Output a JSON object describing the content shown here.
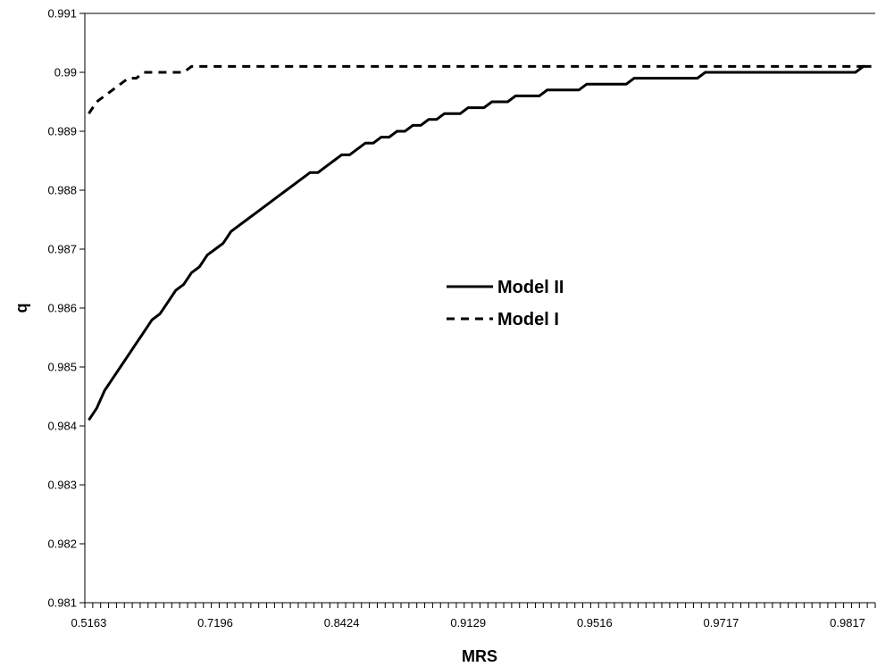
{
  "chart_data": {
    "type": "line",
    "title": "",
    "xlabel": "MRS",
    "ylabel": "q",
    "x_tick_labels": [
      "0.5163",
      "0.7196",
      "0.8424",
      "0.9129",
      "0.9516",
      "0.9717",
      "0.9817"
    ],
    "y_ticks": [
      0.981,
      0.982,
      0.983,
      0.984,
      0.985,
      0.986,
      0.987,
      0.988,
      0.989,
      0.99,
      0.991
    ],
    "y_tick_labels": [
      "0.981",
      "0.982",
      "0.983",
      "0.984",
      "0.985",
      "0.986",
      "0.987",
      "0.988",
      "0.989",
      "0.99",
      "0.991"
    ],
    "ylim": [
      0.981,
      0.991
    ],
    "x_category_count": 100,
    "x_label_every": 16,
    "grid": false,
    "legend_position": "center-right",
    "series": [
      {
        "name": "Model II",
        "style": "solid",
        "color": "#000000",
        "values": [
          0.9841,
          0.9843,
          0.9846,
          0.9848,
          0.985,
          0.9852,
          0.9854,
          0.9856,
          0.9858,
          0.9859,
          0.9861,
          0.9863,
          0.9864,
          0.9866,
          0.9867,
          0.9869,
          0.987,
          0.9871,
          0.9873,
          0.9874,
          0.9875,
          0.9876,
          0.9877,
          0.9878,
          0.9879,
          0.988,
          0.9881,
          0.9882,
          0.9883,
          0.9883,
          0.9884,
          0.9885,
          0.9886,
          0.9886,
          0.9887,
          0.9888,
          0.9888,
          0.9889,
          0.9889,
          0.989,
          0.989,
          0.9891,
          0.9891,
          0.9892,
          0.9892,
          0.9893,
          0.9893,
          0.9893,
          0.9894,
          0.9894,
          0.9894,
          0.9895,
          0.9895,
          0.9895,
          0.9896,
          0.9896,
          0.9896,
          0.9896,
          0.9897,
          0.9897,
          0.9897,
          0.9897,
          0.9897,
          0.9898,
          0.9898,
          0.9898,
          0.9898,
          0.9898,
          0.9898,
          0.9899,
          0.9899,
          0.9899,
          0.9899,
          0.9899,
          0.9899,
          0.9899,
          0.9899,
          0.9899,
          0.99,
          0.99,
          0.99,
          0.99,
          0.99,
          0.99,
          0.99,
          0.99,
          0.99,
          0.99,
          0.99,
          0.99,
          0.99,
          0.99,
          0.99,
          0.99,
          0.99,
          0.99,
          0.99,
          0.99,
          0.9901,
          0.9901
        ]
      },
      {
        "name": "Model I",
        "style": "dashed",
        "color": "#000000",
        "values": [
          0.9893,
          0.9895,
          0.9896,
          0.9897,
          0.9898,
          0.9899,
          0.9899,
          0.99,
          0.99,
          0.99,
          0.99,
          0.99,
          0.99,
          0.9901,
          0.9901,
          0.9901,
          0.9901,
          0.9901,
          0.9901,
          0.9901,
          0.9901,
          0.9901,
          0.9901,
          0.9901,
          0.9901,
          0.9901,
          0.9901,
          0.9901,
          0.9901,
          0.9901,
          0.9901,
          0.9901,
          0.9901,
          0.9901,
          0.9901,
          0.9901,
          0.9901,
          0.9901,
          0.9901,
          0.9901,
          0.9901,
          0.9901,
          0.9901,
          0.9901,
          0.9901,
          0.9901,
          0.9901,
          0.9901,
          0.9901,
          0.9901,
          0.9901,
          0.9901,
          0.9901,
          0.9901,
          0.9901,
          0.9901,
          0.9901,
          0.9901,
          0.9901,
          0.9901,
          0.9901,
          0.9901,
          0.9901,
          0.9901,
          0.9901,
          0.9901,
          0.9901,
          0.9901,
          0.9901,
          0.9901,
          0.9901,
          0.9901,
          0.9901,
          0.9901,
          0.9901,
          0.9901,
          0.9901,
          0.9901,
          0.9901,
          0.9901,
          0.9901,
          0.9901,
          0.9901,
          0.9901,
          0.9901,
          0.9901,
          0.9901,
          0.9901,
          0.9901,
          0.9901,
          0.9901,
          0.9901,
          0.9901,
          0.9901,
          0.9901,
          0.9901,
          0.9901,
          0.9901,
          0.9901,
          0.9901
        ]
      }
    ]
  }
}
